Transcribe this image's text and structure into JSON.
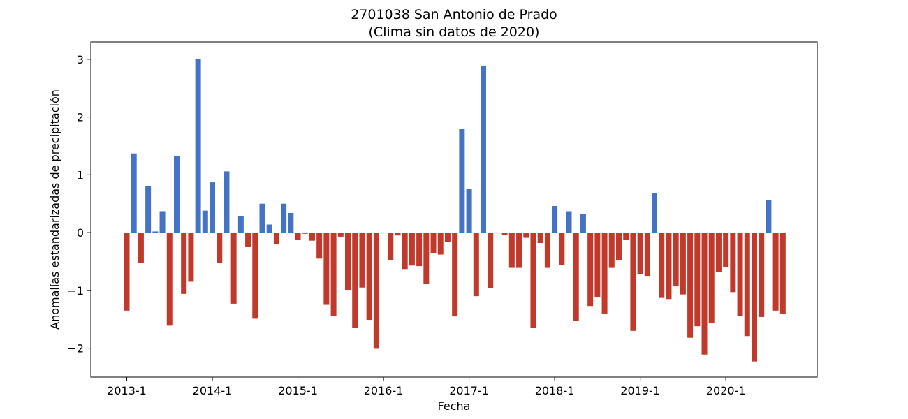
{
  "chart_data": {
    "type": "bar",
    "title_line1": "2701038 San Antonio de Prado",
    "title_line2": "(Clima sin datos de 2020)",
    "xlabel": "Fecha",
    "ylabel": "Anomalías estandarizadas de precipitación",
    "ylim": [
      -2.5,
      3.3
    ],
    "yticks": [
      -2,
      -1,
      0,
      1,
      2,
      3
    ],
    "ytick_labels": [
      "−2",
      "−1",
      "0",
      "1",
      "2",
      "3"
    ],
    "xtick_labels": [
      "2013-1",
      "2014-1",
      "2015-1",
      "2016-1",
      "2017-1",
      "2018-1",
      "2019-1",
      "2020-1"
    ],
    "start": "2013-1",
    "grid": false,
    "positive_color": "#4472c4",
    "negative_color": "#c0392b",
    "values": [
      -1.35,
      1.37,
      -0.53,
      0.81,
      0.02,
      0.37,
      -1.61,
      1.33,
      -1.06,
      -0.85,
      3.0,
      0.38,
      0.87,
      -0.52,
      1.06,
      -1.23,
      0.29,
      -0.25,
      -1.49,
      0.5,
      0.14,
      -0.2,
      0.5,
      0.34,
      -0.13,
      -0.02,
      -0.14,
      -0.45,
      -1.25,
      -1.44,
      -0.07,
      -0.99,
      -1.65,
      -0.95,
      -1.51,
      -2.01,
      -0.01,
      -0.48,
      -0.05,
      -0.63,
      -0.57,
      -0.58,
      -0.89,
      -0.36,
      -0.38,
      -0.16,
      -1.45,
      1.79,
      0.75,
      -1.1,
      2.89,
      -0.96,
      -0.01,
      -0.04,
      -0.61,
      -0.61,
      -0.09,
      -1.65,
      -0.18,
      -0.61,
      0.46,
      -0.56,
      0.37,
      -1.53,
      0.32,
      -1.27,
      -1.11,
      -1.4,
      -0.61,
      -0.47,
      -0.12,
      -1.7,
      -0.72,
      -0.75,
      0.68,
      -1.13,
      -1.15,
      -0.93,
      -1.07,
      -1.82,
      -1.62,
      -2.11,
      -1.56,
      -0.68,
      -0.6,
      -1.03,
      -1.44,
      -1.79,
      -2.23,
      -1.46,
      0.56,
      -1.35,
      -1.4
    ]
  }
}
